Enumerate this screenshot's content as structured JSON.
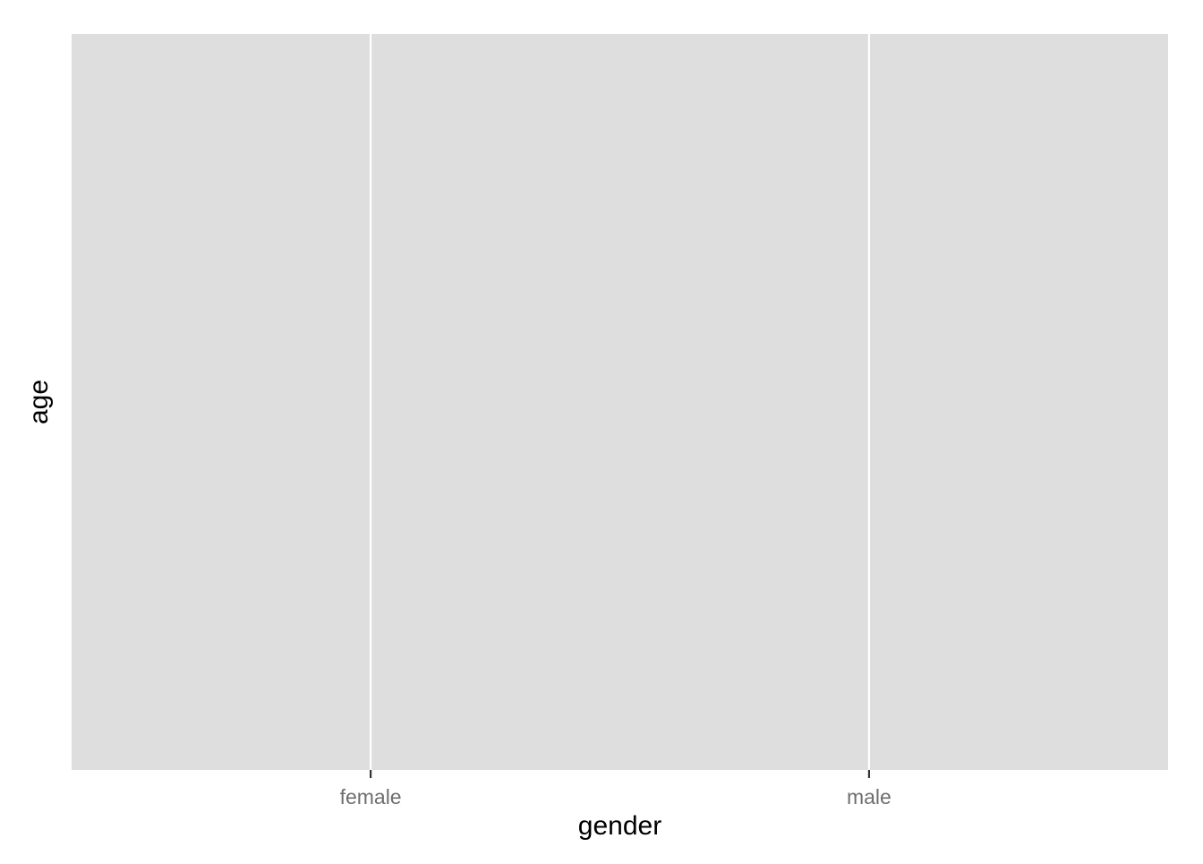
{
  "chart_data": {
    "type": "bar",
    "categories": [
      "female",
      "male"
    ],
    "series": [],
    "title": "",
    "xlabel": "gender",
    "ylabel": "age",
    "grid": true,
    "colors": {
      "panel_background": "#dedede",
      "grid_line": "#ffffff",
      "tick_mark": "#333333",
      "tick_label": "#6e6e6e",
      "axis_title": "#000000",
      "page_background": "#ffffff"
    }
  }
}
